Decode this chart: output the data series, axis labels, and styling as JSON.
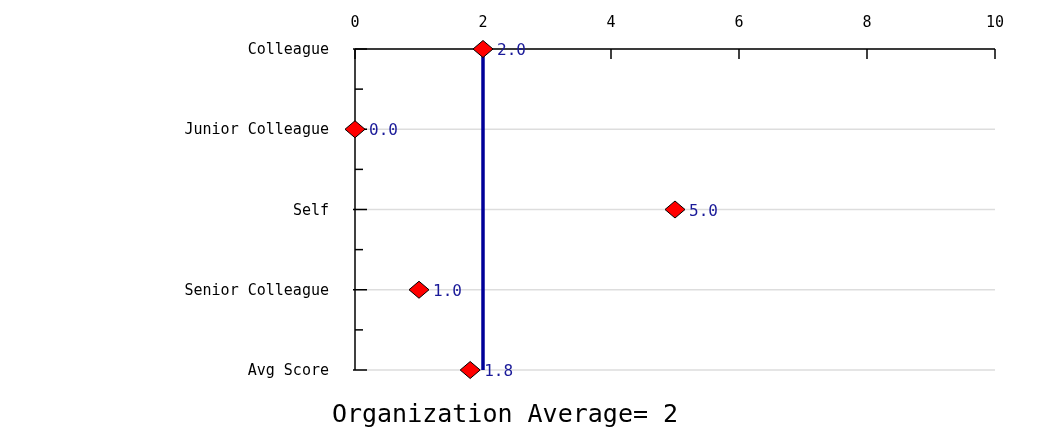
{
  "chart_data": {
    "type": "scatter",
    "orientation": "horizontal",
    "xlabel": "Organization Average= 2",
    "categories": [
      "Colleague",
      "Junior Colleague",
      "Self",
      "Senior Colleague",
      "Avg Score"
    ],
    "values": [
      2,
      0,
      5,
      1,
      1.8
    ],
    "value_labels": [
      "2.0",
      "0.0",
      "5.0",
      "1.0",
      "1.8"
    ],
    "color": "#ff0000",
    "marker": "diamond",
    "grid": "y",
    "xlim": [
      0,
      10
    ],
    "xticks": [
      0,
      2,
      4,
      6,
      8,
      10
    ],
    "ref_lines": [
      {
        "axis": "x",
        "value": 2,
        "color": "#000099"
      }
    ]
  }
}
